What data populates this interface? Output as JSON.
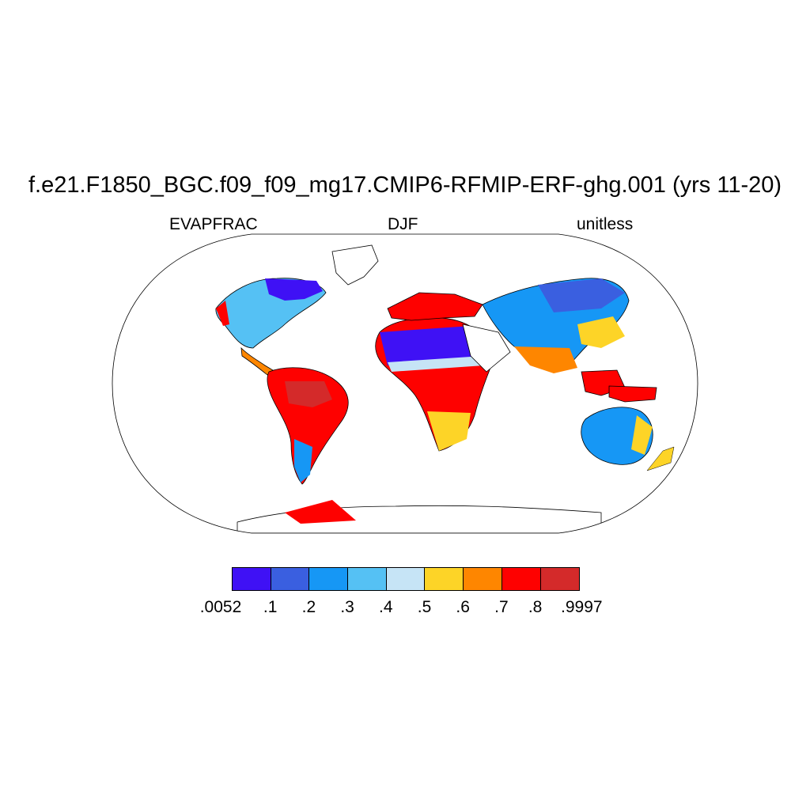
{
  "title": "f.e21.F1850_BGC.f09_f09_mg17.CMIP6-RFMIP-ERF-ghg.001 (yrs 11-20)",
  "variable": "EVAPFRAC",
  "season": "DJF",
  "units": "unitless",
  "colorbar": {
    "colors": [
      "#3f11f5",
      "#3a5fe0",
      "#1697f5",
      "#55c1f4",
      "#c6e4f6",
      "#fdd427",
      "#fe8600",
      "#fe0100",
      "#d42a2a"
    ],
    "labels": [
      ".0052",
      ".1",
      ".2",
      ".3",
      ".4",
      ".5",
      ".6",
      ".7",
      ".8",
      ".9997"
    ]
  }
}
